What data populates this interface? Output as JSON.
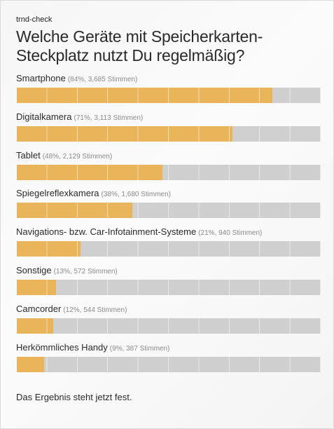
{
  "kicker": "trnd-check",
  "title": "Welche Geräte mit Speicherkarten-Steckplatz nutzt Du regelmäßig?",
  "footer": "Das Ergebnis steht jetzt fest.",
  "colors": {
    "bar_fill": "#e9b45a",
    "bar_track": "#cfcfcf"
  },
  "chart_data": {
    "type": "bar",
    "orientation": "horizontal",
    "title": "Welche Geräte mit Speicherkarten-Steckplatz nutzt Du regelmäßig?",
    "ylim": [
      0,
      100
    ],
    "grid": true,
    "categories": [
      "Smartphone",
      "Digitalkamera",
      "Tablet",
      "Spiegelreflexkamera",
      "Navigations- bzw. Car-Infotainment-Systeme",
      "Sonstige",
      "Camcorder",
      "Herkömmliches Handy"
    ],
    "values": [
      84,
      71,
      48,
      38,
      21,
      13,
      12,
      9
    ],
    "votes": [
      3685,
      3113,
      2129,
      1680,
      940,
      572,
      544,
      387
    ],
    "meta_labels": [
      "(84%, 3,685 Stimmen)",
      "(71%, 3,113 Stimmen)",
      "(48%, 2,129 Stimmen)",
      "(38%, 1,680 Stimmen)",
      "(21%, 940 Stimmen)",
      "(13%, 572 Stimmen)",
      "(12%, 544 Stimmen)",
      "(9%, 387 Stimmen)"
    ]
  }
}
